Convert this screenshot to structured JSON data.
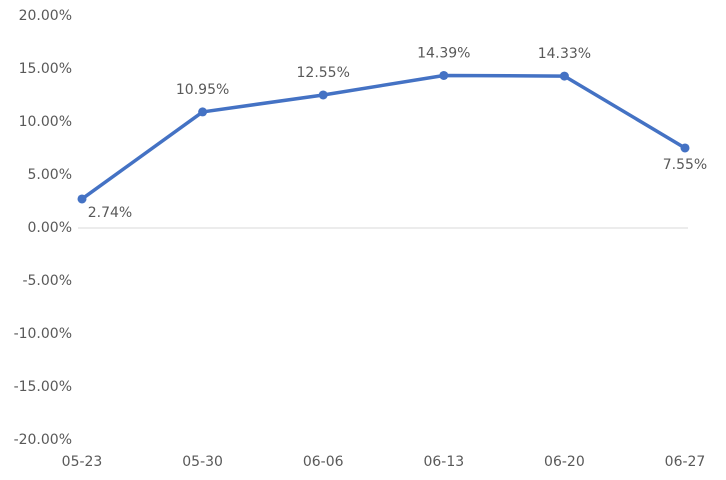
{
  "chart_data": {
    "type": "line",
    "categories": [
      "05-23",
      "05-30",
      "06-06",
      "06-13",
      "06-20",
      "06-27"
    ],
    "series": [
      {
        "color": "#4472c4",
        "values": [
          2.74,
          10.95,
          12.55,
          14.39,
          14.33,
          7.55
        ],
        "value_labels": [
          "2.74%",
          "10.95%",
          "12.55%",
          "14.39%",
          "14.33%",
          "7.55%"
        ]
      }
    ],
    "ylim": [
      -20,
      20
    ],
    "yticks": [
      {
        "value": 20,
        "label": "20.00%"
      },
      {
        "value": 15,
        "label": "15.00%"
      },
      {
        "value": 10,
        "label": "10.00%"
      },
      {
        "value": 5,
        "label": "5.00%"
      },
      {
        "value": 0,
        "label": "0.00%"
      },
      {
        "value": -5,
        "label": "-5.00%"
      },
      {
        "value": -10,
        "label": "-10.00%"
      },
      {
        "value": -15,
        "label": "-15.00%"
      },
      {
        "value": -20,
        "label": "-20.00%"
      }
    ],
    "grid": false
  }
}
